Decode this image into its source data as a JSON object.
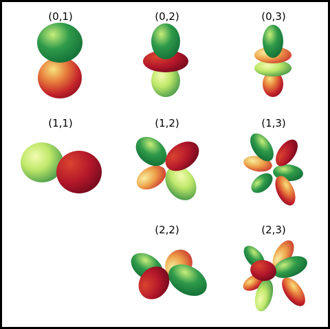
{
  "figure": {
    "background": "#ffffff",
    "border_color": "#000000",
    "colors": {
      "green_dark": "#0f6b35",
      "green_mid": "#2f9a4a",
      "green_light": "#c7ee7a",
      "yellow": "#f6e27c",
      "orange": "#e8803d",
      "red": "#c4232a",
      "red_dark": "#7a0d22"
    },
    "labels": {
      "l0_m1": "(0,1)",
      "l0_m2": "(0,2)",
      "l0_m3": "(0,3)",
      "l1_m1": "(1,1)",
      "l1_m2": "(1,2)",
      "l1_m3": "(1,3)",
      "l2_m2": "(2,2)",
      "l2_m3": "(2,3)"
    }
  }
}
